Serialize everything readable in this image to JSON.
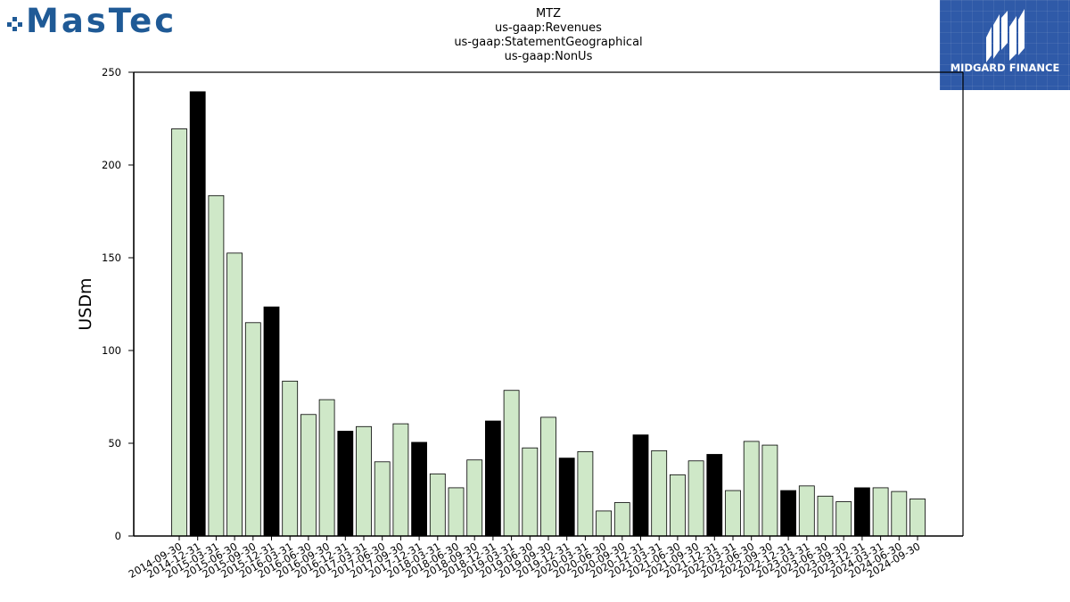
{
  "logos": {
    "left": {
      "text": "MasTec",
      "color": "#1f5a96"
    },
    "right": {
      "text": "MIDGARD FINANCE",
      "background": "#2f5aa8"
    }
  },
  "chart_data": {
    "type": "bar",
    "title_lines": [
      "MTZ",
      "us-gaap:Revenues",
      "us-gaap:StatementGeographical",
      "us-gaap:NonUs"
    ],
    "xlabel": "",
    "ylabel": "USDm",
    "ylim": [
      0,
      250
    ],
    "yticks": [
      0,
      50,
      100,
      150,
      200,
      250
    ],
    "grid": false,
    "legend": "none",
    "colors": {
      "quarter": "#cfe8c8",
      "year_end": "#000000",
      "edge": "#000000"
    },
    "categories": [
      "2014-09-30",
      "2014-12-31",
      "2015-03-31",
      "2015-06-30",
      "2015-09-30",
      "2015-12-31",
      "2016-03-31",
      "2016-06-30",
      "2016-09-30",
      "2016-12-31",
      "2017-03-31",
      "2017-06-30",
      "2017-09-30",
      "2017-12-31",
      "2018-03-31",
      "2018-06-30",
      "2018-09-30",
      "2018-12-31",
      "2019-03-31",
      "2019-06-30",
      "2019-09-30",
      "2019-12-31",
      "2020-03-31",
      "2020-06-30",
      "2020-09-30",
      "2020-12-31",
      "2021-03-31",
      "2021-06-30",
      "2021-09-30",
      "2021-12-31",
      "2022-03-31",
      "2022-06-30",
      "2022-09-30",
      "2022-12-31",
      "2023-03-31",
      "2023-06-30",
      "2023-09-30",
      "2023-12-31",
      "2024-03-31",
      "2024-06-30",
      "2024-09-30"
    ],
    "values": [
      219.5,
      239.5,
      183.5,
      152.5,
      115,
      123.5,
      83.5,
      65.5,
      73.5,
      56.5,
      59,
      40,
      60.5,
      50.5,
      33.5,
      26,
      41,
      62,
      78.5,
      47.5,
      64,
      42,
      45.5,
      13.5,
      18,
      54.5,
      46,
      33,
      40.5,
      44,
      24.5,
      51,
      49,
      24.5,
      27,
      21.5,
      18.5,
      26,
      26,
      24,
      20
    ]
  }
}
